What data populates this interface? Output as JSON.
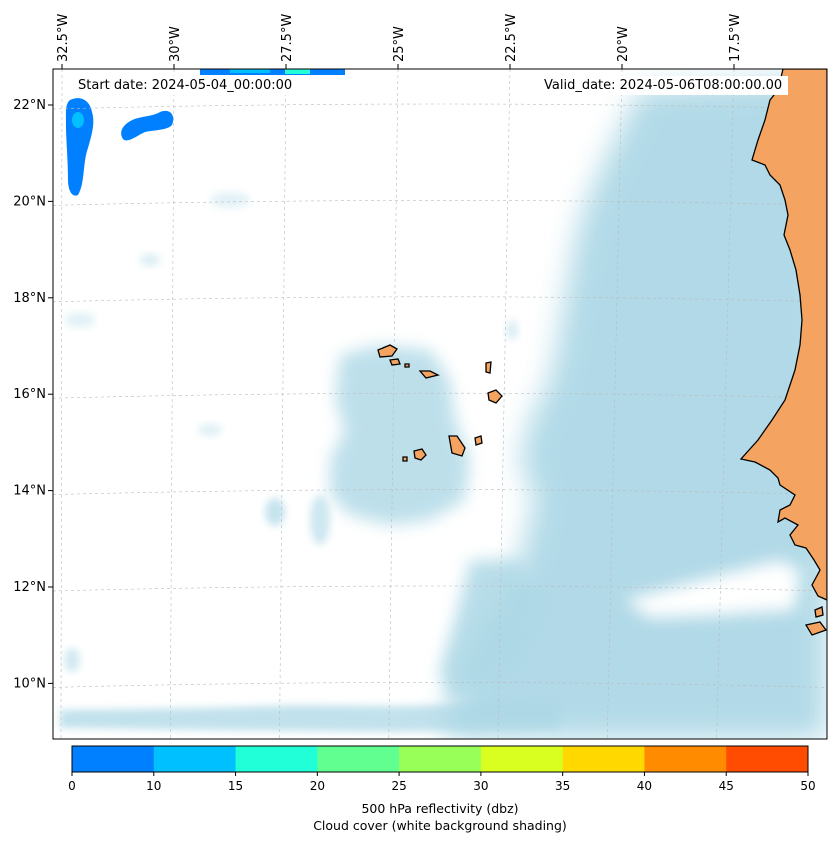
{
  "map": {
    "start_label": "Start date: 2024-05-04_00:00:00",
    "valid_label": "Valid_date: 2024-05-06T08:00:00.00",
    "lat_ticks": [
      {
        "label": "22°N",
        "lat": 22
      },
      {
        "label": "20°N",
        "lat": 20
      },
      {
        "label": "18°N",
        "lat": 18
      },
      {
        "label": "16°N",
        "lat": 16
      },
      {
        "label": "14°N",
        "lat": 14
      },
      {
        "label": "12°N",
        "lat": 12
      },
      {
        "label": "10°N",
        "lat": 10
      }
    ],
    "lon_ticks": [
      {
        "label": "32.5°W",
        "lon": -32.5
      },
      {
        "label": "30°W",
        "lon": -30
      },
      {
        "label": "27.5°W",
        "lon": -27.5
      },
      {
        "label": "25°W",
        "lon": -25
      },
      {
        "label": "22.5°W",
        "lon": -22.5
      },
      {
        "label": "20°W",
        "lon": -20
      },
      {
        "label": "17.5°W",
        "lon": -17.5
      }
    ],
    "colors": {
      "land": "#f4a460",
      "cloud": "#add8e6",
      "ocean": "#ffffff",
      "gridline": "#bbbbbb"
    }
  },
  "colorbar": {
    "ticks": [
      "0",
      "10",
      "15",
      "20",
      "25",
      "30",
      "35",
      "40",
      "45",
      "50"
    ],
    "colors": [
      "#0080ff",
      "#00c0ff",
      "#20ffd8",
      "#60ff90",
      "#98ff58",
      "#d8ff20",
      "#ffd800",
      "#ff8c00",
      "#ff4c00"
    ],
    "label_line1": "500 hPa reflectivity (dbz)",
    "label_line2": "Cloud cover (white background shading)"
  }
}
